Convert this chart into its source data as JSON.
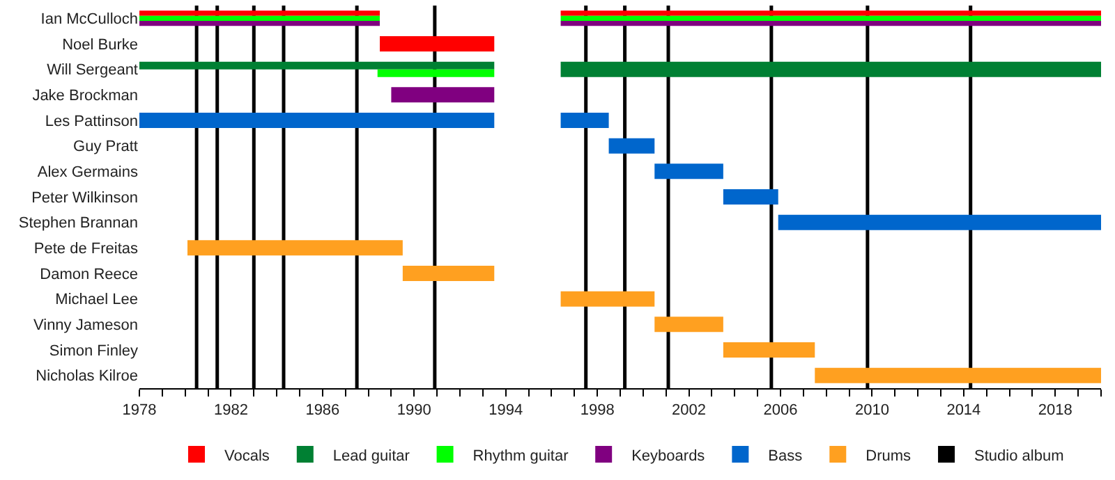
{
  "chart_data": {
    "type": "bar",
    "orientation": "horizontal",
    "categories": [
      "Ian McCulloch",
      "Noel Burke",
      "Will Sergeant",
      "Jake Brockman",
      "Les Pattinson",
      "Guy Pratt",
      "Alex Germains",
      "Peter Wilkinson",
      "Stephen Brannan",
      "Pete de Freitas",
      "Damon Reece",
      "Michael Lee",
      "Vinny Jameson",
      "Simon Finley",
      "Nicholas Kilroe"
    ],
    "series": [
      {
        "name": "Vocals",
        "color": "#ff0000",
        "base": [
          1978,
          1988.5,
          null,
          null,
          null,
          null,
          null,
          null,
          null,
          null,
          null,
          null,
          null,
          null,
          null
        ],
        "values": [
          10.5,
          5.0,
          null,
          null,
          null,
          null,
          null,
          null,
          null,
          null,
          null,
          null,
          null,
          null,
          null
        ]
      },
      {
        "name": "Lead guitar",
        "color": "#008033",
        "base": [
          null,
          null,
          1978,
          null,
          null,
          null,
          null,
          null,
          null,
          null,
          null,
          null,
          null,
          null,
          null
        ],
        "values": [
          null,
          null,
          15.5,
          null,
          null,
          null,
          null,
          null,
          null,
          null,
          null,
          null,
          null,
          null,
          null
        ]
      },
      {
        "name": "Rhythm guitar",
        "color": "#00ff00",
        "base": [
          1978,
          null,
          1988.4,
          null,
          null,
          null,
          null,
          null,
          null,
          null,
          null,
          null,
          null,
          null,
          null
        ],
        "values": [
          10.5,
          null,
          5.1,
          null,
          null,
          null,
          null,
          null,
          null,
          null,
          null,
          null,
          null,
          null,
          null
        ]
      },
      {
        "name": "Keyboards",
        "color": "#800080",
        "base": [
          1978,
          null,
          null,
          1989.0,
          null,
          null,
          null,
          null,
          null,
          null,
          null,
          null,
          null,
          null,
          null
        ],
        "values": [
          10.5,
          null,
          null,
          4.5,
          null,
          null,
          null,
          null,
          null,
          null,
          null,
          null,
          null,
          null,
          null
        ]
      },
      {
        "name": "Bass",
        "color": "#0066cc",
        "base": [
          null,
          null,
          null,
          null,
          1978,
          1998.5,
          2000.5,
          2003.5,
          2005.9,
          null,
          null,
          null,
          null,
          null,
          null
        ],
        "values": [
          null,
          null,
          null,
          null,
          15.5,
          2.0,
          3.0,
          2.4,
          14.1,
          null,
          null,
          null,
          null,
          null,
          null
        ]
      },
      {
        "name": "Drums",
        "color": "#ffa020",
        "base": [
          null,
          null,
          null,
          null,
          null,
          null,
          null,
          null,
          null,
          1980.1,
          1989.5,
          1996.4,
          2000.5,
          2003.5,
          2007.5
        ],
        "values": [
          null,
          null,
          null,
          null,
          null,
          null,
          null,
          null,
          null,
          9.4,
          4.0,
          4.1,
          3.0,
          4.0,
          12.5
        ]
      },
      {
        "color": "#ff0000",
        "base": [
          1996.4,
          null,
          null,
          null,
          null,
          null,
          null,
          null,
          null,
          null,
          null,
          null,
          null,
          null,
          null
        ],
        "values": [
          23.6,
          null,
          null,
          null,
          null,
          null,
          null,
          null,
          null,
          null,
          null,
          null,
          null,
          null,
          null
        ]
      },
      {
        "color": "#008033",
        "base": [
          null,
          null,
          1996.4,
          null,
          null,
          null,
          null,
          null,
          null,
          null,
          null,
          null,
          null,
          null,
          null
        ],
        "values": [
          null,
          null,
          23.6,
          null,
          null,
          null,
          null,
          null,
          null,
          null,
          null,
          null,
          null,
          null,
          null
        ]
      },
      {
        "color": "#00ff00",
        "base": [
          1996.4,
          null,
          null,
          null,
          null,
          null,
          null,
          null,
          null,
          null,
          null,
          null,
          null,
          null,
          null
        ],
        "values": [
          23.6,
          null,
          null,
          null,
          null,
          null,
          null,
          null,
          null,
          null,
          null,
          null,
          null,
          null,
          null
        ]
      },
      {
        "color": "#800080",
        "base": [
          1996.4,
          null,
          null,
          null,
          null,
          null,
          null,
          null,
          null,
          null,
          null,
          null,
          null,
          null,
          null
        ],
        "values": [
          23.6,
          null,
          null,
          null,
          null,
          null,
          null,
          null,
          null,
          null,
          null,
          null,
          null,
          null,
          null
        ]
      },
      {
        "color": "#0066cc",
        "base": [
          null,
          null,
          null,
          null,
          1996.4,
          null,
          null,
          null,
          null,
          null,
          null,
          null,
          null,
          null,
          null
        ],
        "values": [
          null,
          null,
          null,
          null,
          2.1,
          null,
          null,
          null,
          null,
          null,
          null,
          null,
          null,
          null,
          null
        ]
      }
    ],
    "ref_lines": [
      {
        "axis": "x",
        "value": 1980.5,
        "label": "Studio album",
        "color": "#000000"
      },
      {
        "axis": "x",
        "value": 1981.4,
        "color": "#000000"
      },
      {
        "axis": "x",
        "value": 1983.0,
        "color": "#000000"
      },
      {
        "axis": "x",
        "value": 1984.3,
        "color": "#000000"
      },
      {
        "axis": "x",
        "value": 1987.5,
        "color": "#000000"
      },
      {
        "axis": "x",
        "value": 1990.9,
        "color": "#000000"
      },
      {
        "axis": "x",
        "value": 1997.5,
        "color": "#000000"
      },
      {
        "axis": "x",
        "value": 1999.2,
        "color": "#000000"
      },
      {
        "axis": "x",
        "value": 2001.1,
        "color": "#000000"
      },
      {
        "axis": "x",
        "value": 2005.6,
        "color": "#000000"
      },
      {
        "axis": "x",
        "value": 2009.8,
        "color": "#000000"
      },
      {
        "axis": "x",
        "value": 2014.3,
        "color": "#000000"
      }
    ],
    "xlim": [
      1978,
      2020
    ],
    "xticks": [
      1978,
      {
        "value": 1979,
        "label": null
      },
      {
        "value": 1980,
        "label": null
      },
      {
        "value": 1981,
        "label": null
      },
      1982,
      {
        "value": 1983,
        "label": null
      },
      {
        "value": 1984,
        "label": null
      },
      {
        "value": 1985,
        "label": null
      },
      1986,
      {
        "value": 1987,
        "label": null
      },
      {
        "value": 1988,
        "label": null
      },
      {
        "value": 1989,
        "label": null
      },
      1990,
      {
        "value": 1991,
        "label": null
      },
      {
        "value": 1992,
        "label": null
      },
      {
        "value": 1993,
        "label": null
      },
      1994,
      {
        "value": 1995,
        "label": null
      },
      {
        "value": 1996,
        "label": null
      },
      {
        "value": 1997,
        "label": null
      },
      1998,
      {
        "value": 1999,
        "label": null
      },
      {
        "value": 2000,
        "label": null
      },
      {
        "value": 2001,
        "label": null
      },
      2002,
      {
        "value": 2003,
        "label": null
      },
      {
        "value": 2004,
        "label": null
      },
      {
        "value": 2005,
        "label": null
      },
      2006,
      {
        "value": 2007,
        "label": null
      },
      {
        "value": 2008,
        "label": null
      },
      {
        "value": 2009,
        "label": null
      },
      2010,
      {
        "value": 2011,
        "label": null
      },
      {
        "value": 2012,
        "label": null
      },
      {
        "value": 2013,
        "label": null
      },
      2014,
      {
        "value": 2015,
        "label": null
      },
      {
        "value": 2016,
        "label": null
      },
      {
        "value": 2017,
        "label": null
      },
      2018,
      {
        "value": 2019,
        "label": null
      },
      {
        "value": 2020,
        "label": null
      }
    ],
    "grid": false,
    "legend": "bottom"
  }
}
